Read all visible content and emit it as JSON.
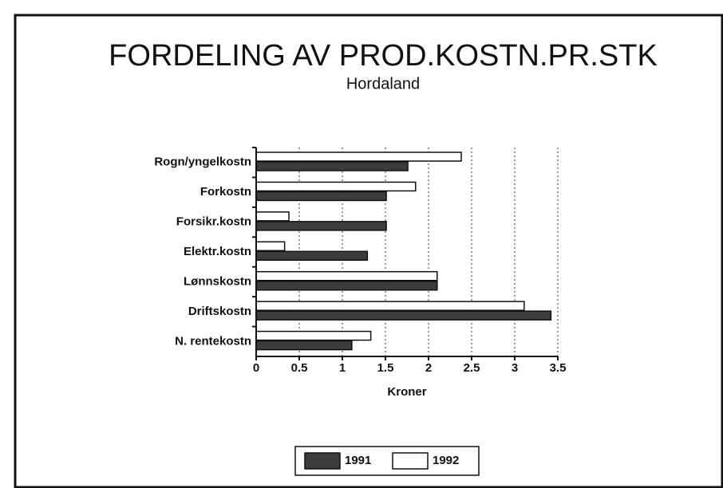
{
  "chart_data": {
    "type": "hbar",
    "title": "FORDELING AV PROD.KOSTN.PR.STK",
    "subtitle": "Hordaland",
    "x_label": "Kroner",
    "categories": [
      "Rogn/yngelkostn",
      "Forkostn",
      "Forsikr.kostn",
      "Elektr.kostn",
      "Lønnskostn",
      "Driftskostn",
      "N. rentekostn"
    ],
    "series": [
      {
        "name": "1991",
        "color": "#3c3c3c",
        "values": [
          1.76,
          1.51,
          1.51,
          1.29,
          2.1,
          3.42,
          1.11
        ]
      },
      {
        "name": "1992",
        "color": "#ffffff",
        "values": [
          2.38,
          1.85,
          0.38,
          0.33,
          2.1,
          3.11,
          1.33
        ]
      }
    ],
    "xlim": [
      0,
      3.5
    ],
    "xticks": [
      0,
      0.5,
      1,
      1.5,
      2,
      2.5,
      3,
      3.5
    ],
    "grid": true,
    "legend": "bottom"
  }
}
